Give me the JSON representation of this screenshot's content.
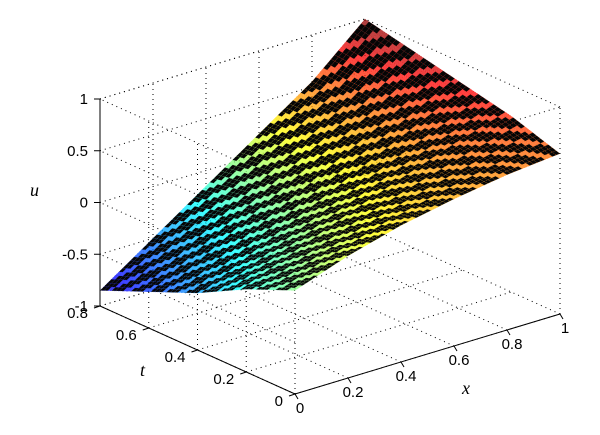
{
  "chart_data": {
    "type": "surface",
    "title": "",
    "xlabel": "x",
    "ylabel": "t",
    "zlabel": "u",
    "xlim": [
      0,
      1
    ],
    "ylim": [
      0,
      0.8
    ],
    "zlim": [
      -1,
      1
    ],
    "x_ticks": [
      "0",
      "0.2",
      "0.4",
      "0.6",
      "0.8",
      "1"
    ],
    "y_ticks": [
      "0",
      "0.2",
      "0.4",
      "0.6",
      "0.8"
    ],
    "z_ticks": [
      "-1",
      "-0.5",
      "0",
      "0.5",
      "1"
    ],
    "grid": true,
    "colormap": "jet",
    "surface_samples": {
      "description_of_points": "u values sampled on a grid of x (columns) and t (rows)",
      "x": [
        0,
        0.2,
        0.4,
        0.6,
        0.8,
        1
      ],
      "t": [
        0,
        0.2,
        0.4,
        0.6,
        0.8
      ],
      "u": [
        [
          0.0,
          0.18,
          0.32,
          0.42,
          0.5,
          0.55
        ],
        [
          -0.2,
          0.0,
          0.2,
          0.38,
          0.55,
          0.7
        ],
        [
          -0.45,
          -0.2,
          0.05,
          0.3,
          0.55,
          0.8
        ],
        [
          -0.65,
          -0.35,
          -0.05,
          0.25,
          0.55,
          0.9
        ],
        [
          -0.85,
          -0.5,
          -0.15,
          0.2,
          0.55,
          1.0
        ]
      ]
    },
    "colors": {
      "low": "#0000ff",
      "mid": "#00ff80",
      "high": "#ff0000",
      "surface_dark": "#000000"
    }
  }
}
